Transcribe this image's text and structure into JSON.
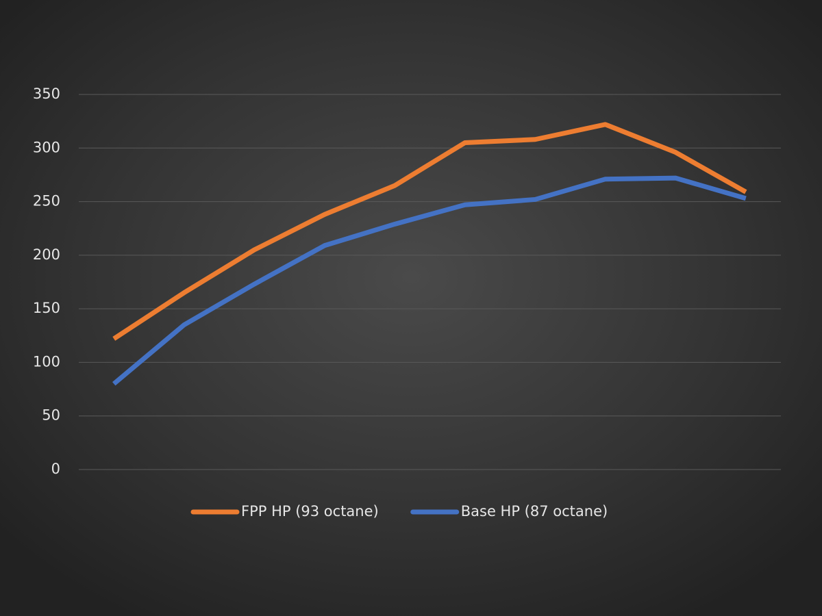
{
  "chart_data": {
    "type": "line",
    "categories": [
      null,
      null,
      null,
      null,
      null,
      null,
      null,
      null,
      null,
      null
    ],
    "series": [
      {
        "name": "FPP HP (93 octane)",
        "color": "#ed7d31",
        "values": [
          122,
          165,
          205,
          238,
          265,
          305,
          308,
          322,
          296,
          259
        ]
      },
      {
        "name": "Base HP (87 octane)",
        "color": "#4472c4",
        "values": [
          80,
          135,
          173,
          209,
          229,
          247,
          252,
          271,
          272,
          253
        ]
      }
    ],
    "ylim": [
      0,
      350
    ],
    "yticks": [
      0,
      50,
      100,
      150,
      200,
      250,
      300,
      350
    ],
    "grid": true,
    "legend": "bottom"
  }
}
